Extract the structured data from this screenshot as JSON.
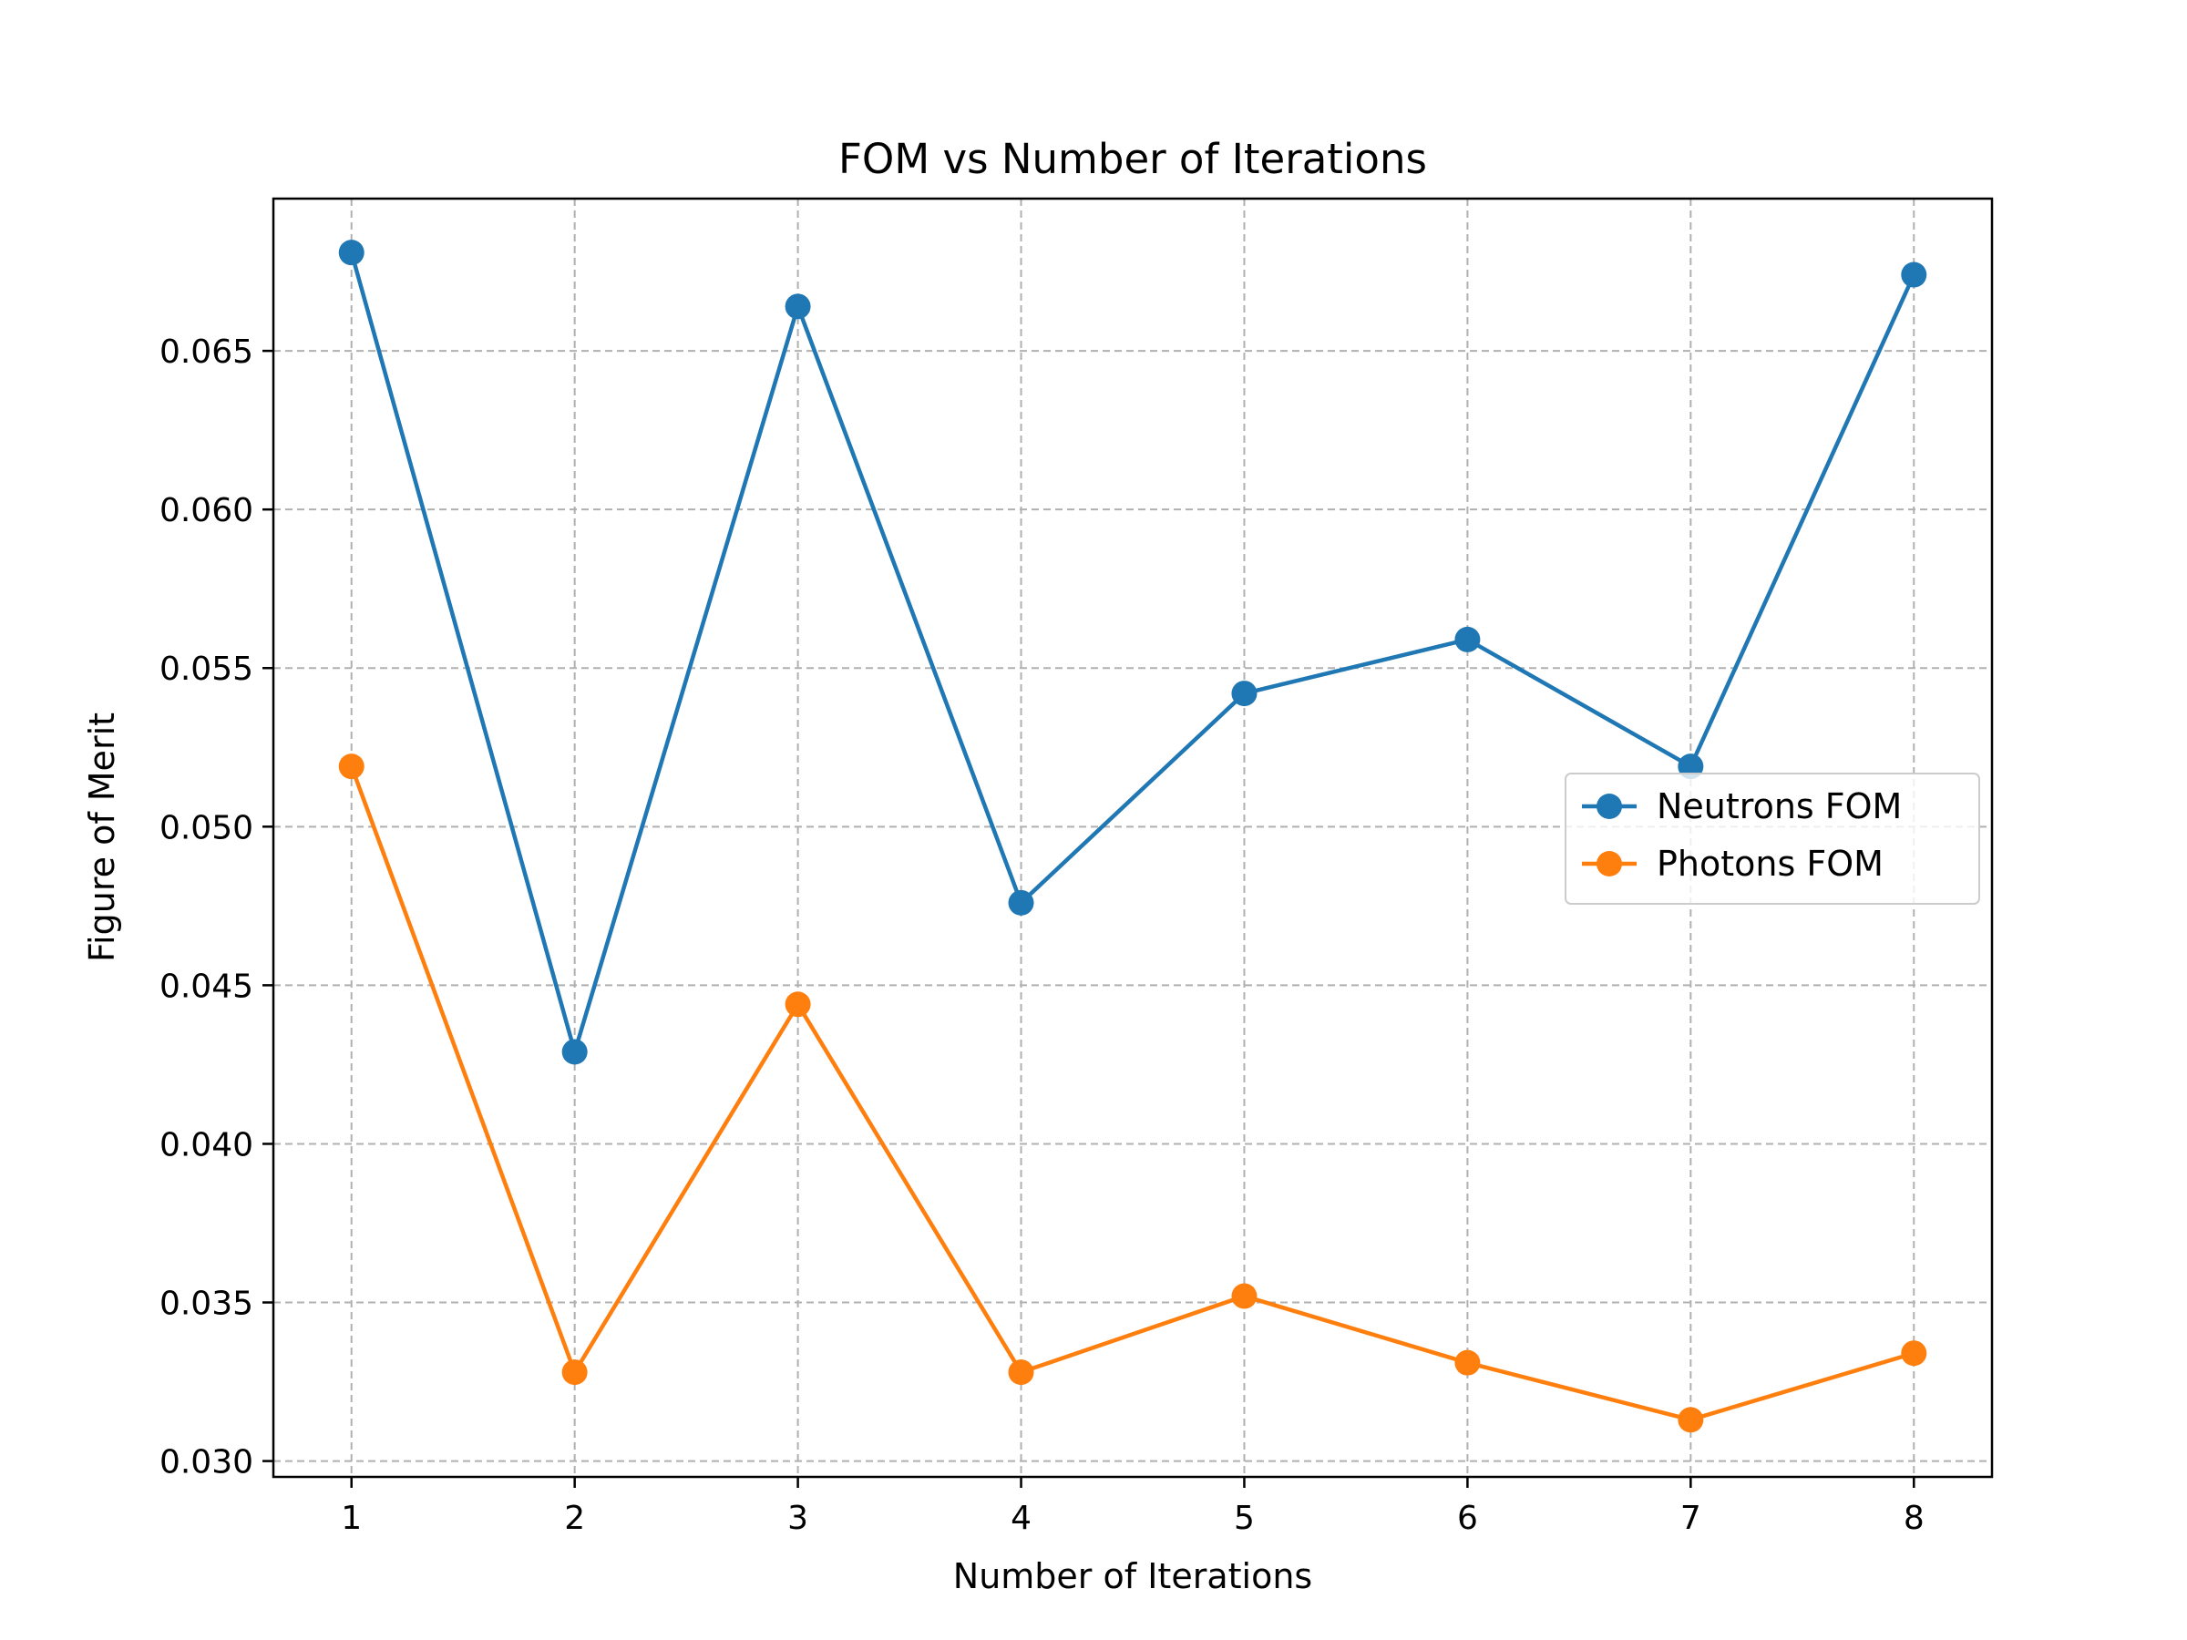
{
  "chart_data": {
    "type": "line",
    "title": "FOM vs Number of Iterations",
    "xlabel": "Number of Iterations",
    "ylabel": "Figure of Merit",
    "x": [
      1,
      2,
      3,
      4,
      5,
      6,
      7,
      8
    ],
    "xlim": [
      0.65,
      8.35
    ],
    "ylim": [
      0.0295,
      0.0698
    ],
    "xticks": [
      1,
      2,
      3,
      4,
      5,
      6,
      7,
      8
    ],
    "yticks": [
      0.03,
      0.035,
      0.04,
      0.045,
      0.05,
      0.055,
      0.06,
      0.065
    ],
    "ytick_labels": [
      "0.030",
      "0.035",
      "0.040",
      "0.045",
      "0.050",
      "0.055",
      "0.060",
      "0.065"
    ],
    "grid": true,
    "legend_position": "center-right",
    "series": [
      {
        "name": "Neutrons FOM",
        "color": "#1f77b4",
        "marker": "circle",
        "values": [
          0.0681,
          0.0429,
          0.0664,
          0.0476,
          0.0542,
          0.0559,
          0.0519,
          0.0674
        ]
      },
      {
        "name": "Photons FOM",
        "color": "#ff7f0e",
        "marker": "circle",
        "values": [
          0.0519,
          0.0328,
          0.0444,
          0.0328,
          0.0352,
          0.0331,
          0.0313,
          0.0334
        ]
      }
    ]
  }
}
